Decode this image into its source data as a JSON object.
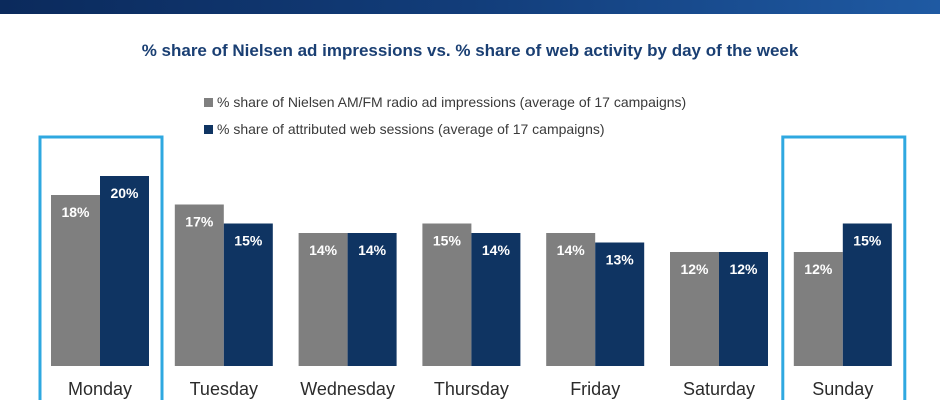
{
  "colors": {
    "nielsen": "#7f7f7f",
    "web": "#0f3462",
    "highlight": "#2fa8e0",
    "title": "#1a3f73"
  },
  "chart_data": {
    "type": "bar",
    "title": "% share of Nielsen ad impressions vs. % share of web activity by day of the week",
    "categories": [
      "Monday",
      "Tuesday",
      "Wednesday",
      "Thursday",
      "Friday",
      "Saturday",
      "Sunday"
    ],
    "series": [
      {
        "name": "% share of Nielsen AM/FM radio ad impressions (average of 17 campaigns)",
        "values": [
          18,
          17,
          14,
          15,
          14,
          12,
          12
        ]
      },
      {
        "name": "% share of attributed web sessions (average of 17 campaigns)",
        "values": [
          20,
          15,
          14,
          14,
          13,
          12,
          15
        ]
      }
    ],
    "value_labels": [
      [
        "18%",
        "17%",
        "14%",
        "15%",
        "14%",
        "12%",
        "12%"
      ],
      [
        "20%",
        "15%",
        "14%",
        "14%",
        "13%",
        "12%",
        "15%"
      ]
    ],
    "highlighted_categories": [
      "Monday",
      "Sunday"
    ],
    "legend_position": "top",
    "ylim": [
      0,
      20
    ],
    "xlabel": "",
    "ylabel": ""
  }
}
